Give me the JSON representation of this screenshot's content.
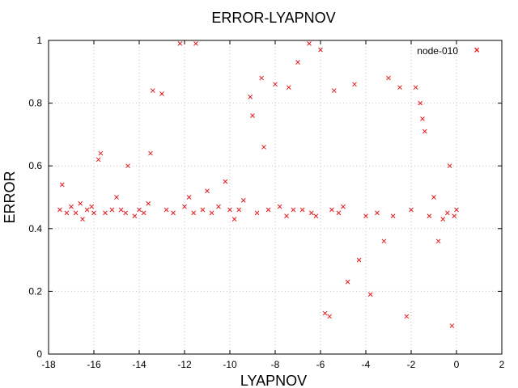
{
  "chart_data": {
    "type": "scatter",
    "title": "ERROR-LYAPNOV",
    "xlabel": "LYAPNOV",
    "ylabel": "ERROR",
    "xlim": [
      -18,
      2
    ],
    "ylim": [
      0,
      1
    ],
    "x_ticks": [
      "-18",
      "-16",
      "-14",
      "-12",
      "-10",
      "-8",
      "-6",
      "-4",
      "-2",
      "0",
      "2"
    ],
    "y_ticks": [
      "0",
      "0.2",
      "0.4",
      "0.6",
      "0.8",
      "1"
    ],
    "grid": true,
    "legend_position": "top-right",
    "marker": "x",
    "series": [
      {
        "name": "node-010",
        "color": "#e41a1c",
        "points": [
          [
            -17.5,
            0.46
          ],
          [
            -17.4,
            0.54
          ],
          [
            -17.2,
            0.45
          ],
          [
            -17.0,
            0.47
          ],
          [
            -16.8,
            0.45
          ],
          [
            -16.6,
            0.48
          ],
          [
            -16.5,
            0.43
          ],
          [
            -16.3,
            0.46
          ],
          [
            -16.1,
            0.47
          ],
          [
            -16.0,
            0.45
          ],
          [
            -15.8,
            0.62
          ],
          [
            -15.7,
            0.64
          ],
          [
            -15.5,
            0.45
          ],
          [
            -15.2,
            0.46
          ],
          [
            -15.0,
            0.5
          ],
          [
            -14.8,
            0.46
          ],
          [
            -14.6,
            0.45
          ],
          [
            -14.5,
            0.6
          ],
          [
            -14.2,
            0.44
          ],
          [
            -14.0,
            0.46
          ],
          [
            -13.8,
            0.45
          ],
          [
            -13.6,
            0.48
          ],
          [
            -13.5,
            0.64
          ],
          [
            -13.4,
            0.84
          ],
          [
            -13.0,
            0.83
          ],
          [
            -12.8,
            0.46
          ],
          [
            -12.5,
            0.45
          ],
          [
            -12.2,
            0.99
          ],
          [
            -12.0,
            0.47
          ],
          [
            -11.8,
            0.5
          ],
          [
            -11.6,
            0.45
          ],
          [
            -11.5,
            0.99
          ],
          [
            -11.2,
            0.46
          ],
          [
            -11.0,
            0.52
          ],
          [
            -10.8,
            0.45
          ],
          [
            -10.5,
            0.47
          ],
          [
            -10.2,
            0.55
          ],
          [
            -10.0,
            0.46
          ],
          [
            -9.8,
            0.43
          ],
          [
            -9.6,
            0.46
          ],
          [
            -9.4,
            0.49
          ],
          [
            -9.1,
            0.82
          ],
          [
            -9.0,
            0.76
          ],
          [
            -8.8,
            0.45
          ],
          [
            -8.6,
            0.88
          ],
          [
            -8.5,
            0.66
          ],
          [
            -8.3,
            0.46
          ],
          [
            -8.0,
            0.86
          ],
          [
            -7.8,
            0.47
          ],
          [
            -7.5,
            0.44
          ],
          [
            -7.4,
            0.85
          ],
          [
            -7.2,
            0.46
          ],
          [
            -7.0,
            0.93
          ],
          [
            -6.8,
            0.46
          ],
          [
            -6.5,
            0.99
          ],
          [
            -6.4,
            0.45
          ],
          [
            -6.2,
            0.44
          ],
          [
            -6.0,
            0.97
          ],
          [
            -5.8,
            0.13
          ],
          [
            -5.6,
            0.12
          ],
          [
            -5.5,
            0.46
          ],
          [
            -5.4,
            0.84
          ],
          [
            -5.2,
            0.45
          ],
          [
            -5.0,
            0.47
          ],
          [
            -4.8,
            0.23
          ],
          [
            -4.5,
            0.86
          ],
          [
            -4.3,
            0.3
          ],
          [
            -4.0,
            0.44
          ],
          [
            -3.8,
            0.19
          ],
          [
            -3.5,
            0.45
          ],
          [
            -3.2,
            0.36
          ],
          [
            -3.0,
            0.88
          ],
          [
            -2.8,
            0.44
          ],
          [
            -2.5,
            0.85
          ],
          [
            -2.2,
            0.12
          ],
          [
            -2.0,
            0.46
          ],
          [
            -1.8,
            0.85
          ],
          [
            -1.6,
            0.8
          ],
          [
            -1.5,
            0.75
          ],
          [
            -1.4,
            0.71
          ],
          [
            -1.2,
            0.44
          ],
          [
            -1.0,
            0.5
          ],
          [
            -0.8,
            0.36
          ],
          [
            -0.6,
            0.43
          ],
          [
            -0.4,
            0.45
          ],
          [
            -0.3,
            0.6
          ],
          [
            -0.2,
            0.09
          ],
          [
            -0.1,
            0.44
          ],
          [
            0.0,
            0.46
          ],
          [
            0.9,
            0.97
          ]
        ]
      }
    ]
  }
}
